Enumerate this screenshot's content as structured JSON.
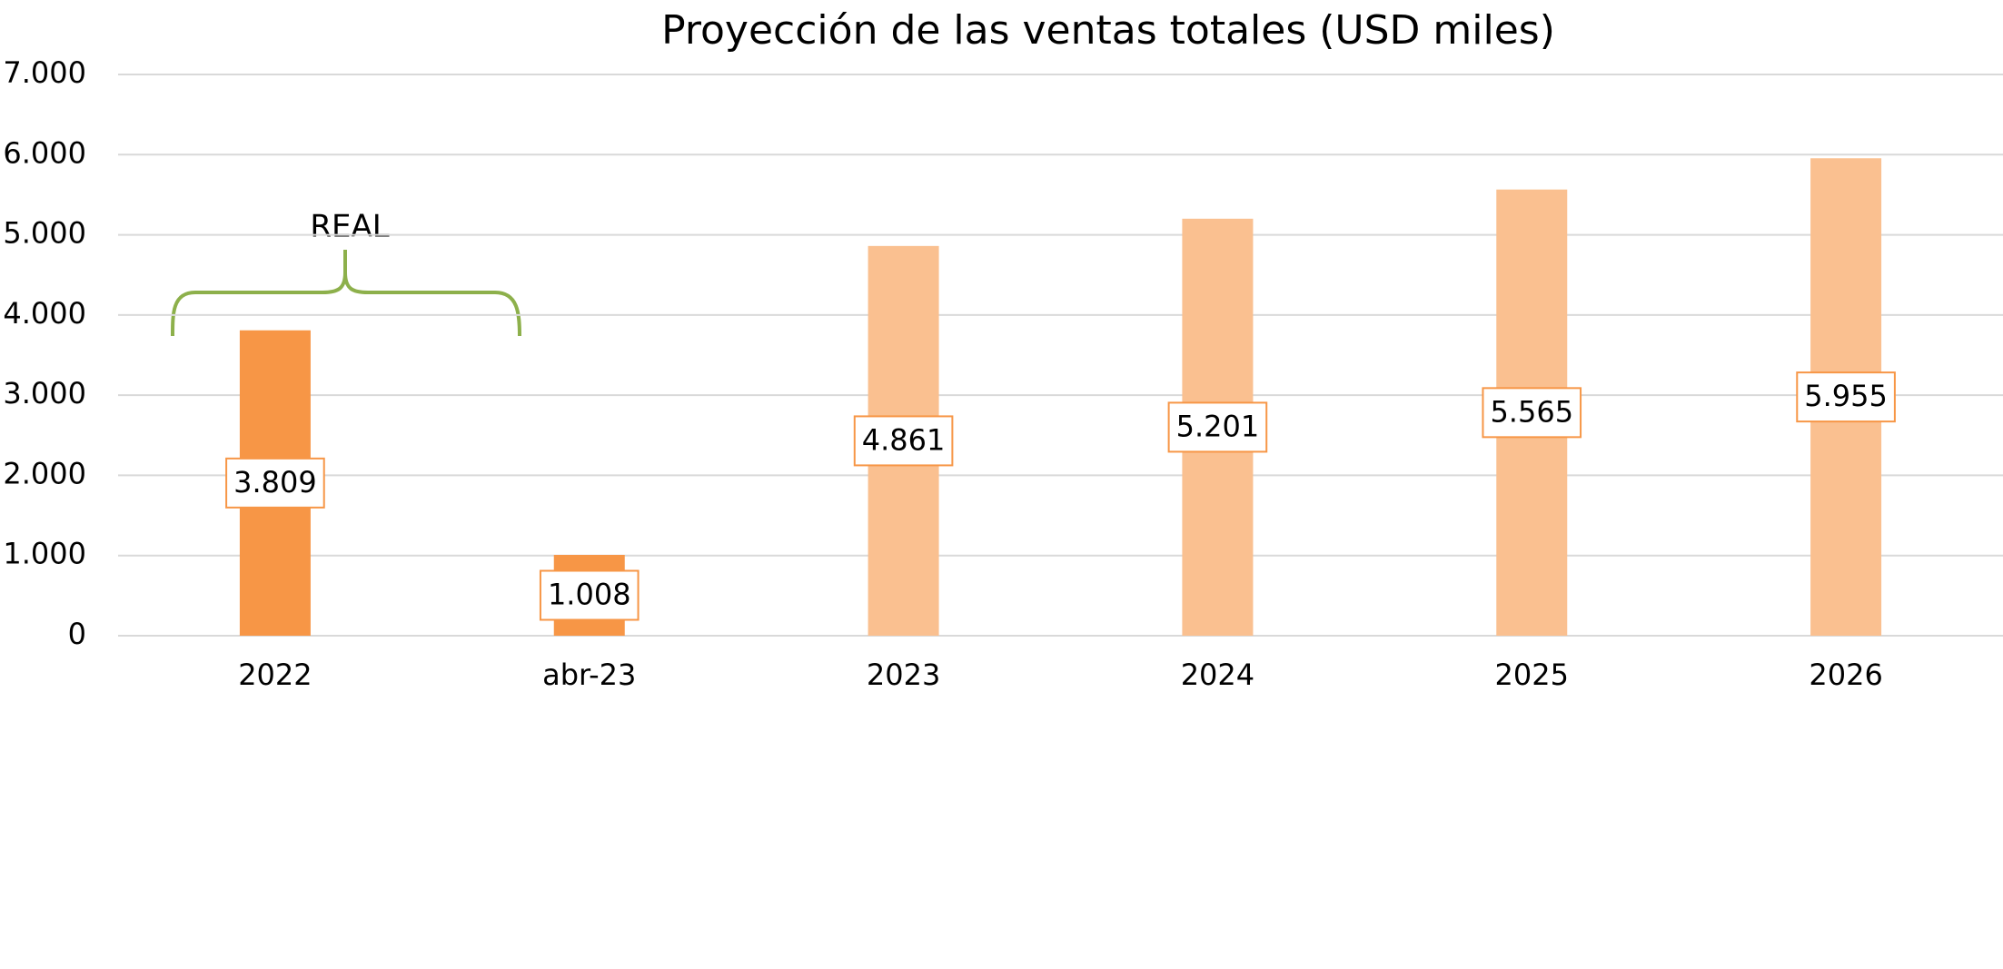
{
  "chart_data": {
    "type": "bar",
    "title": "Proyección de las ventas totales (USD miles)",
    "categories": [
      "2022",
      "abr-23",
      "2023",
      "2024",
      "2025",
      "2026"
    ],
    "values": [
      3809,
      1008,
      4861,
      5201,
      5565,
      5955
    ],
    "value_labels": [
      "3.809",
      "1.008",
      "4.861",
      "5.201",
      "5.565",
      "5.955"
    ],
    "colors": [
      "#f79646",
      "#f79646",
      "#fac090",
      "#fac090",
      "#fac090",
      "#fac090"
    ],
    "ylim": [
      0,
      7000
    ],
    "yticks": [
      0,
      {
        "value": 1000,
        "label": "1.000"
      },
      {
        "value": 2000,
        "label": "2.000"
      },
      {
        "value": 3000,
        "label": "3.000"
      },
      {
        "value": 4000,
        "label": "4.000"
      },
      {
        "value": 5000,
        "label": "5.000"
      },
      {
        "value": 6000,
        "label": "6.000"
      },
      {
        "value": 7000,
        "label": "7.000"
      }
    ],
    "grid": true,
    "annotations": [
      "REAL"
    ]
  }
}
